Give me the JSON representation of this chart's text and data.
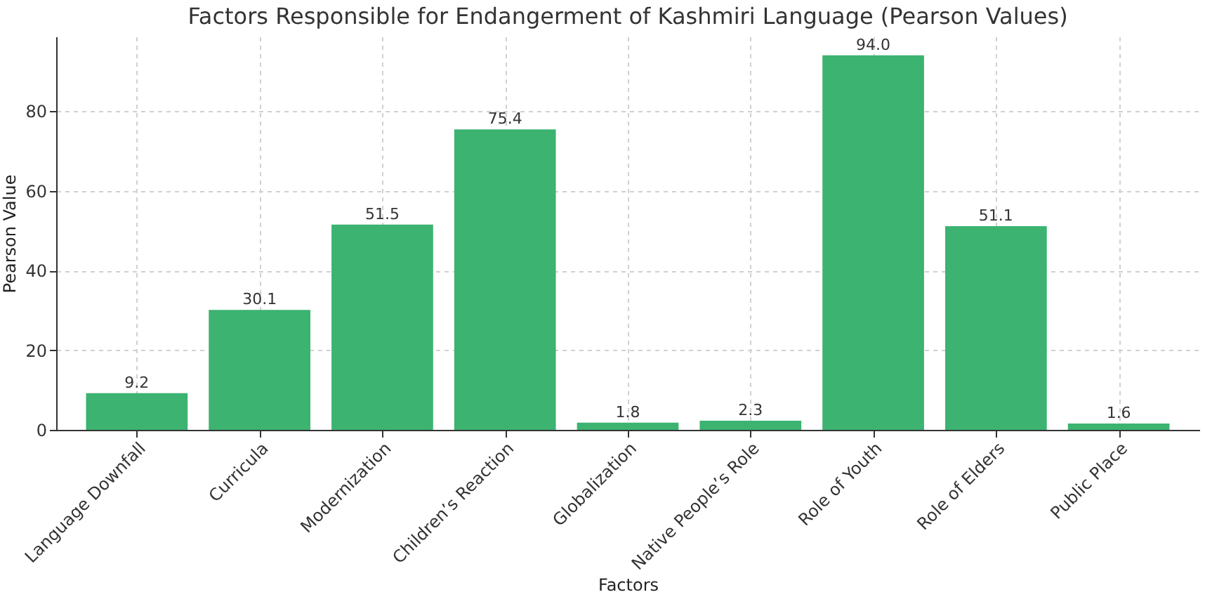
{
  "chart_data": {
    "type": "bar",
    "title": "Factors Responsible for Endangerment of Kashmiri Language (Pearson Values)",
    "xlabel": "Factors",
    "ylabel": "Pearson Value",
    "categories": [
      "Language Downfall",
      "Curricula",
      "Modernization",
      "Children’s Reaction",
      "Globalization",
      "Native People’s Role",
      "Role of Youth",
      "Role of Elders",
      "Public Place"
    ],
    "values": [
      9.2,
      30.1,
      51.5,
      75.4,
      1.8,
      2.3,
      94.0,
      51.1,
      1.6
    ],
    "value_labels": [
      "9.2",
      "30.1",
      "51.5",
      "75.4",
      "1.8",
      "2.3",
      "94.0",
      "51.1",
      "1.6"
    ],
    "color": "#3cb371",
    "ylim": [
      0,
      98.7
    ],
    "yticks": [
      0,
      20,
      40,
      60,
      80
    ],
    "grid": true
  }
}
